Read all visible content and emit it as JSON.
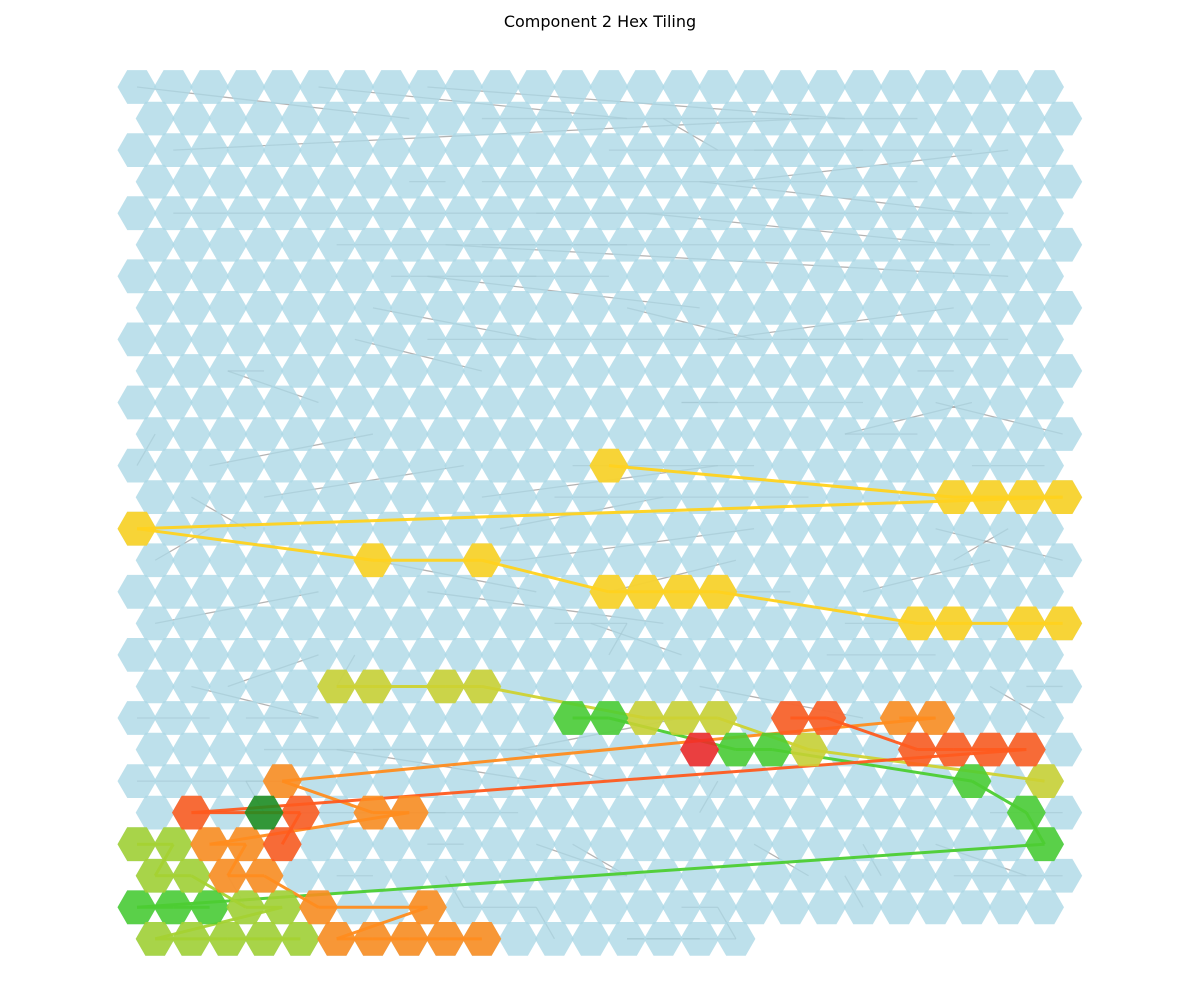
{
  "chart_data": {
    "type": "heatmap",
    "title": "Component 2 Hex Tiling",
    "grid": {
      "rows": 28,
      "cols": 26,
      "last_row_cols": 17,
      "layout": "offset-rows",
      "axes": "off"
    },
    "colors": {
      "background_cell": "#add8e6",
      "background_edge": "#808080",
      "yellow": "#ffd21e",
      "yellow_orange": "#ffc21e",
      "yellow_green": "#cdd232",
      "lime": "#a5d232",
      "green": "#4ccd32",
      "dark_green": "#1f8c1f",
      "orange": "#ff8c1e",
      "red_orange": "#ff5a1e",
      "red": "#f02828"
    },
    "highlighted_paths": [
      {
        "color": "#ffd21e",
        "cells": [
          [
            12,
            13
          ],
          [
            13,
            22
          ],
          [
            13,
            23
          ],
          [
            13,
            24
          ],
          [
            13,
            25
          ],
          [
            14,
            0
          ],
          [
            15,
            6
          ],
          [
            15,
            9
          ],
          [
            16,
            13
          ],
          [
            16,
            14
          ],
          [
            16,
            15
          ],
          [
            16,
            16
          ],
          [
            17,
            21
          ],
          [
            17,
            22
          ],
          [
            17,
            24
          ],
          [
            17,
            25
          ]
        ]
      },
      {
        "color": "#cdd232",
        "cells": [
          [
            19,
            5
          ],
          [
            19,
            6
          ],
          [
            19,
            8
          ],
          [
            19,
            9
          ],
          [
            20,
            14
          ],
          [
            20,
            15
          ],
          [
            20,
            16
          ],
          [
            21,
            18
          ],
          [
            22,
            25
          ]
        ]
      },
      {
        "color": "#4ccd32",
        "cells": [
          [
            20,
            12
          ],
          [
            20,
            13
          ],
          [
            21,
            16
          ],
          [
            21,
            17
          ],
          [
            22,
            23
          ],
          [
            23,
            24
          ],
          [
            24,
            25
          ],
          [
            26,
            0
          ],
          [
            26,
            1
          ],
          [
            26,
            2
          ]
        ]
      },
      {
        "color": "#a5d232",
        "cells": [
          [
            24,
            0
          ],
          [
            24,
            1
          ],
          [
            25,
            0
          ],
          [
            25,
            1
          ],
          [
            26,
            3
          ],
          [
            26,
            4
          ],
          [
            27,
            0
          ],
          [
            27,
            1
          ],
          [
            27,
            2
          ],
          [
            27,
            3
          ],
          [
            27,
            4
          ]
        ]
      },
      {
        "color": "#ff8c1e",
        "cells": [
          [
            20,
            21
          ],
          [
            20,
            22
          ],
          [
            22,
            4
          ],
          [
            23,
            6
          ],
          [
            23,
            7
          ],
          [
            24,
            2
          ],
          [
            24,
            3
          ],
          [
            25,
            2
          ],
          [
            25,
            3
          ],
          [
            26,
            5
          ],
          [
            26,
            8
          ],
          [
            27,
            5
          ],
          [
            27,
            6
          ],
          [
            27,
            7
          ],
          [
            27,
            8
          ],
          [
            27,
            9
          ]
        ]
      },
      {
        "color": "#ff5a1e",
        "cells": [
          [
            20,
            18
          ],
          [
            20,
            19
          ],
          [
            21,
            21
          ],
          [
            21,
            22
          ],
          [
            21,
            23
          ],
          [
            21,
            24
          ],
          [
            23,
            1
          ],
          [
            23,
            4
          ],
          [
            24,
            4
          ]
        ]
      },
      {
        "color": "#f02828",
        "cells": [
          [
            21,
            15
          ]
        ]
      },
      {
        "color": "#1f8c1f",
        "cells": [
          [
            23,
            3
          ]
        ]
      }
    ]
  }
}
